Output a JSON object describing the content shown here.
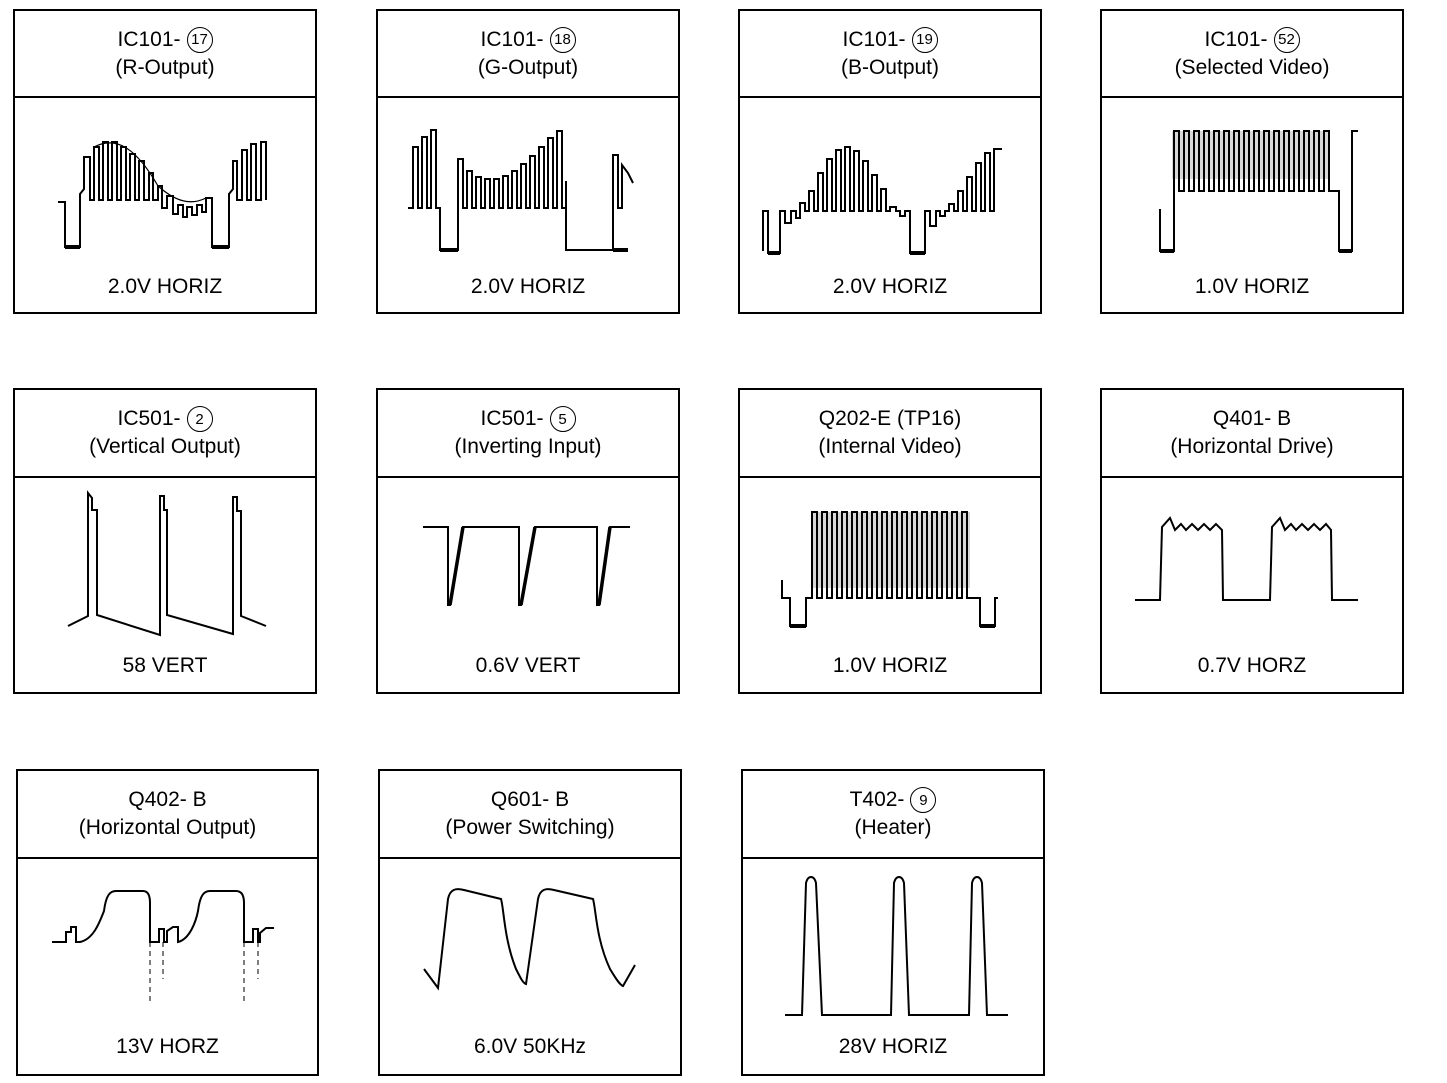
{
  "panels": [
    {
      "ref": "IC101-",
      "pin": "17",
      "name": "(R-Output)",
      "scale": "2.0V HORIZ"
    },
    {
      "ref": "IC101-",
      "pin": "18",
      "name": "(G-Output)",
      "scale": "2.0V HORIZ"
    },
    {
      "ref": "IC101-",
      "pin": "19",
      "name": "(B-Output)",
      "scale": "2.0V HORIZ"
    },
    {
      "ref": "IC101-",
      "pin": "52",
      "name": "(Selected Video)",
      "scale": "1.0V HORIZ"
    },
    {
      "ref": "IC501-",
      "pin": "2",
      "name": "(Vertical Output)",
      "scale": "58 VERT"
    },
    {
      "ref": "IC501-",
      "pin": "5",
      "name": "(Inverting Input)",
      "scale": "0.6V VERT"
    },
    {
      "ref": "Q202-E (TP16)",
      "pin": "",
      "name": "(Internal Video)",
      "scale": "1.0V HORIZ"
    },
    {
      "ref": "Q401- B",
      "pin": "",
      "name": "(Horizontal Drive)",
      "scale": "0.7V HORZ"
    },
    {
      "ref": "Q402- B",
      "pin": "",
      "name": "(Horizontal Output)",
      "scale": "13V HORZ"
    },
    {
      "ref": "Q601- B",
      "pin": "",
      "name": "(Power Switching)",
      "scale": "6.0V 50KHz"
    },
    {
      "ref": "T402-",
      "pin": "9",
      "name": "(Heater)",
      "scale": "28V HORIZ"
    }
  ]
}
